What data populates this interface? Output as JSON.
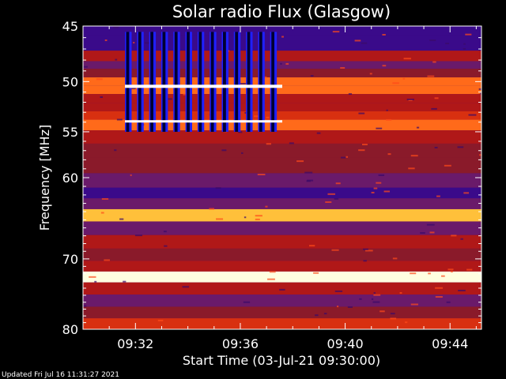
{
  "chart_data": {
    "type": "heatmap",
    "title": "Solar radio Flux (Glasgow)",
    "xlabel": "Start Time (03-Jul-21 09:30:00)",
    "ylabel": "Frequency [MHz]",
    "x_range_minutes_after_start": [
      0,
      15.2
    ],
    "x_ticks": [
      {
        "minute": 2,
        "label": "09:32"
      },
      {
        "minute": 6,
        "label": "09:36"
      },
      {
        "minute": 10,
        "label": "09:40"
      },
      {
        "minute": 14,
        "label": "09:44"
      }
    ],
    "y_range_mhz": [
      45,
      80
    ],
    "y_axis_inverted": true,
    "y_axis_scale": "log",
    "y_ticks": [
      {
        "value": 45,
        "label": "45"
      },
      {
        "value": 50,
        "label": "50"
      },
      {
        "value": 55,
        "label": "55"
      },
      {
        "value": 60,
        "label": "60"
      },
      {
        "value": 70,
        "label": "70"
      },
      {
        "value": 80,
        "label": "80"
      }
    ],
    "colormap": [
      "#1a0066",
      "#3a0a8a",
      "#6a1a6a",
      "#8a1a2a",
      "#b01818",
      "#d83010",
      "#ff6a1a",
      "#ffc03a",
      "#ffffe0"
    ],
    "frequency_band_intensity": [
      {
        "mhz": 45.2,
        "level": 0.1
      },
      {
        "mhz": 46.5,
        "level": 0.18
      },
      {
        "mhz": 47.8,
        "level": 0.55
      },
      {
        "mhz": 48.4,
        "level": 0.3
      },
      {
        "mhz": 49.2,
        "level": 0.4
      },
      {
        "mhz": 50.0,
        "level": 0.75
      },
      {
        "mhz": 50.8,
        "level": 0.7
      },
      {
        "mhz": 51.6,
        "level": 0.5
      },
      {
        "mhz": 52.5,
        "level": 0.45
      },
      {
        "mhz": 53.3,
        "level": 0.6
      },
      {
        "mhz": 54.2,
        "level": 0.7
      },
      {
        "mhz": 55.5,
        "level": 0.5
      },
      {
        "mhz": 57.0,
        "level": 0.42
      },
      {
        "mhz": 58.5,
        "level": 0.35
      },
      {
        "mhz": 60.5,
        "level": 0.25
      },
      {
        "mhz": 61.8,
        "level": 0.15
      },
      {
        "mhz": 63.0,
        "level": 0.22
      },
      {
        "mhz": 64.4,
        "level": 0.85
      },
      {
        "mhz": 66.0,
        "level": 0.3
      },
      {
        "mhz": 67.8,
        "level": 0.45
      },
      {
        "mhz": 69.5,
        "level": 0.4
      },
      {
        "mhz": 71.0,
        "level": 0.55
      },
      {
        "mhz": 72.4,
        "level": 0.95
      },
      {
        "mhz": 74.0,
        "level": 0.45
      },
      {
        "mhz": 75.8,
        "level": 0.25
      },
      {
        "mhz": 77.5,
        "level": 0.35
      },
      {
        "mhz": 79.2,
        "level": 0.6
      }
    ],
    "burst": {
      "start_minute": 1.6,
      "end_minute": 7.6,
      "top_mhz": 45.5,
      "bottom_mhz": 55.0,
      "color": "#2020ff"
    },
    "grid": false,
    "legend": "none"
  },
  "footer": {
    "updated_text": "Updated Fri Jul 16 11:31:27 2021"
  }
}
